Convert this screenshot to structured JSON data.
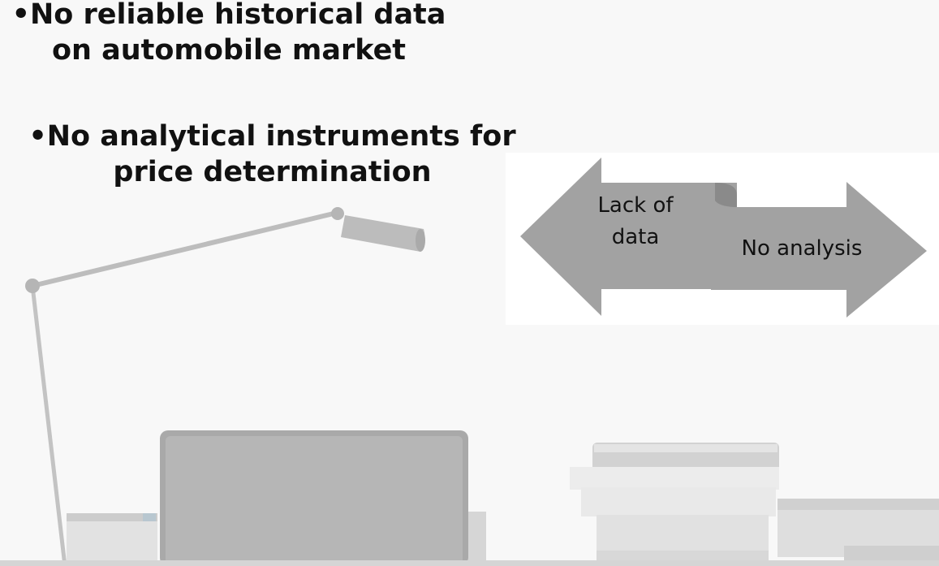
{
  "bullets": [
    {
      "text": "•No reliable historical data on automobile market"
    },
    {
      "text": "•No analytical instruments for price determination"
    }
  ],
  "diagram": {
    "left_arrow_label": "Lack of data",
    "right_arrow_label": "No analysis",
    "arrow_color": "#a2a2a2"
  },
  "background": {
    "description_icons": [
      "desk-lamp-icon",
      "laptop-icon",
      "book-stack-icon"
    ]
  }
}
